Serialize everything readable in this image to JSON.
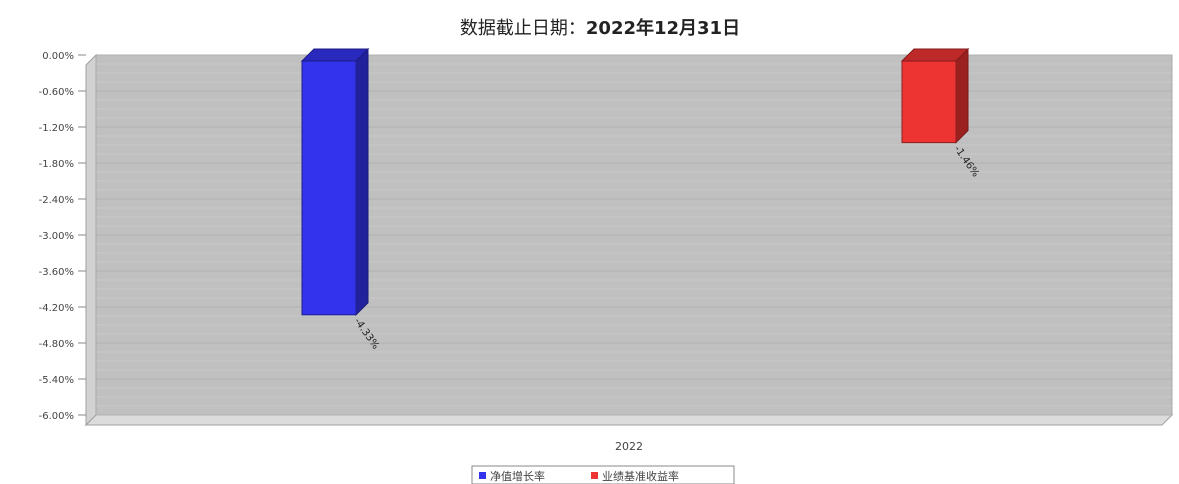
{
  "chart_data": {
    "type": "bar",
    "title_prefix": "数据截止日期：",
    "title_date": "2022年12月31日",
    "categories": [
      "2022"
    ],
    "series": [
      {
        "name": "净值增长率",
        "values": [
          -4.33
        ],
        "label": "-4.33%",
        "color": "#3333ee"
      },
      {
        "name": "业绩基准收益率",
        "values": [
          -1.46
        ],
        "label": "-1.46%",
        "color": "#ee3333"
      }
    ],
    "yticks": [
      "0.00%",
      "-0.60%",
      "-1.20%",
      "-1.80%",
      "-2.40%",
      "-3.00%",
      "-3.60%",
      "-4.20%",
      "-4.80%",
      "-5.40%",
      "-6.00%"
    ],
    "ylim": [
      -6.0,
      0.0
    ],
    "grid": true,
    "legend_position": "bottom-center",
    "plot_background": "#c0c0c0"
  }
}
